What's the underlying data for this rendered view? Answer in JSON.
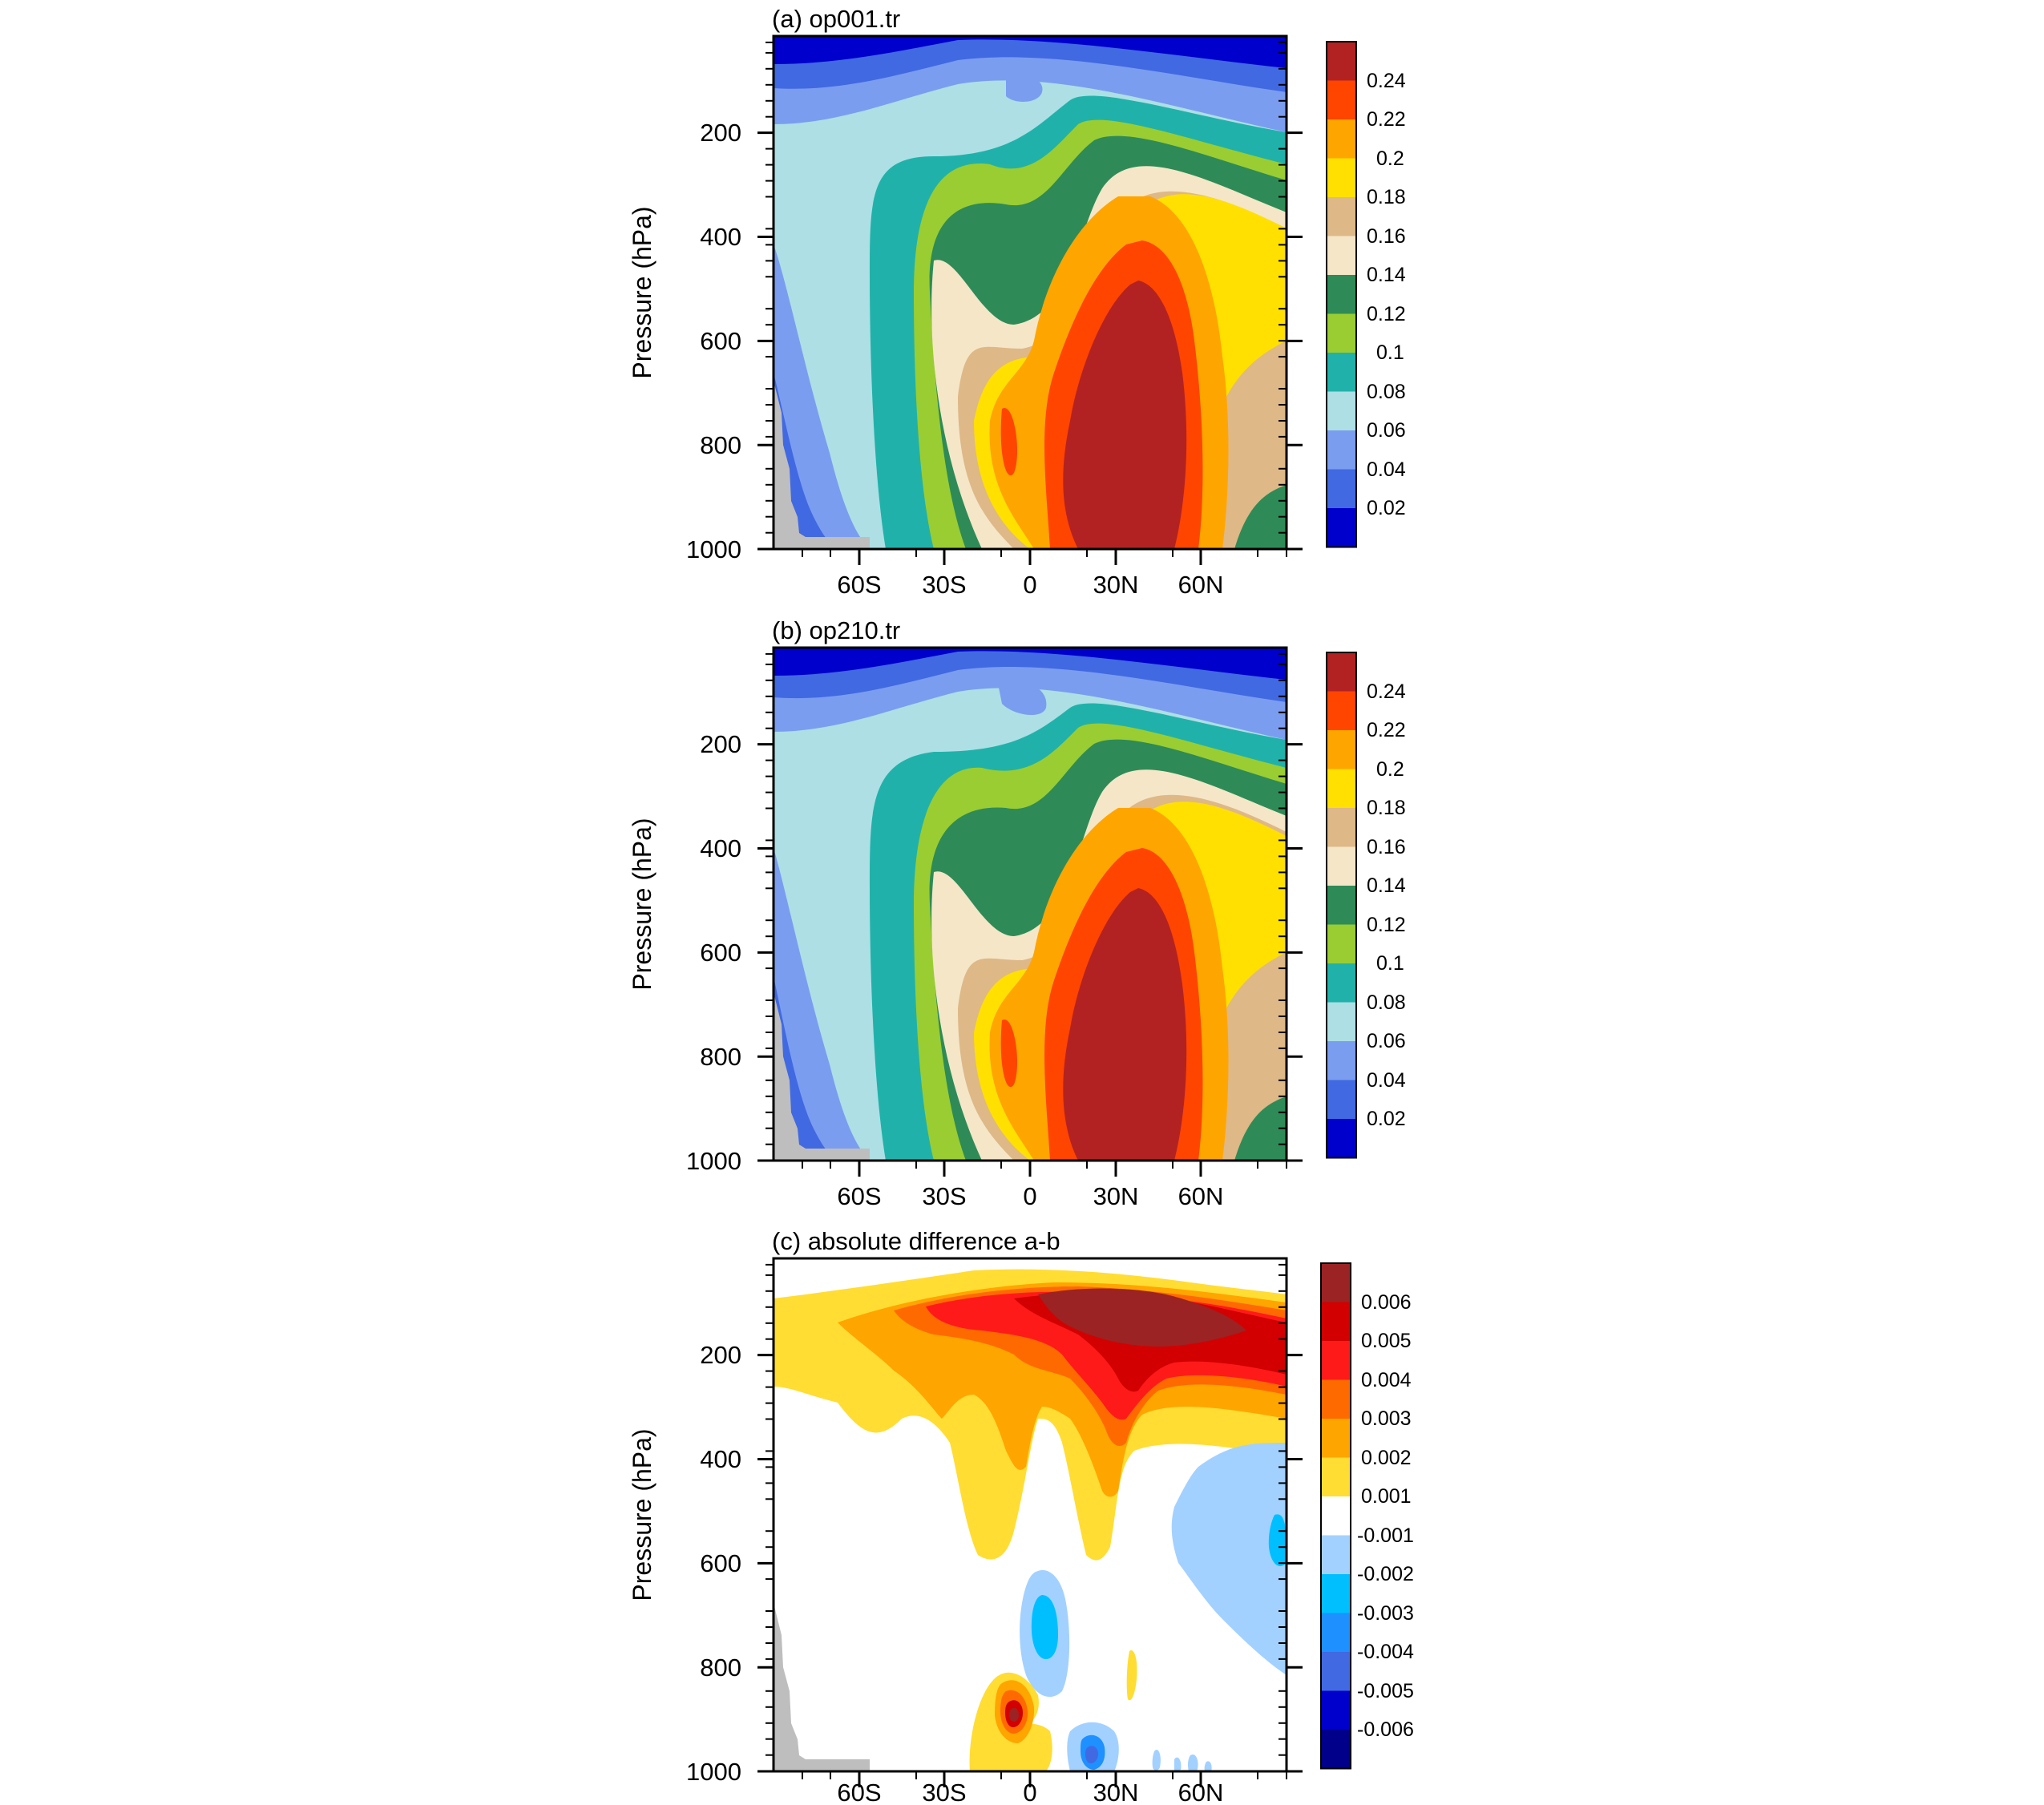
{
  "chart_data": [
    {
      "type": "contour",
      "title": "(a) op001.tr",
      "ylabel": "Pressure (hPa)",
      "xlabel": "",
      "ylim": [
        1000,
        30
      ],
      "y_reversed": true,
      "xlim": [
        -90,
        90
      ],
      "yticks": [
        200,
        400,
        600,
        800,
        1000
      ],
      "xtick_values": [
        -60,
        -30,
        0,
        30,
        60
      ],
      "xtick_labels": [
        "60S",
        "30S",
        "0",
        "30N",
        "60N"
      ],
      "colorbar_levels": [
        "0.02",
        "0.04",
        "0.06",
        "0.08",
        "0.1",
        "0.12",
        "0.14",
        "0.16",
        "0.18",
        "0.2",
        "0.22",
        "0.24"
      ],
      "colorbar_colors": [
        "#0000cd",
        "#4169e1",
        "#7b9df0",
        "#aedfe5",
        "#20b2aa",
        "#9acd32",
        "#2e8b57",
        "#f5e6c8",
        "#deb887",
        "#ffe000",
        "#ffa500",
        "#ff4500",
        "#b22222"
      ],
      "features": {
        "maximum": {
          "value": "> 0.24",
          "lat": 30,
          "p_top": 500,
          "p_bottom": 1000
        },
        "secondary_maximum": {
          "value": "0.22-0.24",
          "lat": -5,
          "p": 800
        },
        "upper_minimum": {
          "value": "< 0.02",
          "p": 50
        }
      }
    },
    {
      "type": "contour",
      "title": "(b) op210.tr",
      "ylabel": "Pressure (hPa)",
      "xlabel": "",
      "ylim": [
        1000,
        30
      ],
      "y_reversed": true,
      "xlim": [
        -90,
        90
      ],
      "yticks": [
        200,
        400,
        600,
        800,
        1000
      ],
      "xtick_values": [
        -60,
        -30,
        0,
        30,
        60
      ],
      "xtick_labels": [
        "60S",
        "30S",
        "0",
        "30N",
        "60N"
      ],
      "colorbar_levels": [
        "0.02",
        "0.04",
        "0.06",
        "0.08",
        "0.1",
        "0.12",
        "0.14",
        "0.16",
        "0.18",
        "0.2",
        "0.22",
        "0.24"
      ],
      "colorbar_colors": [
        "#0000cd",
        "#4169e1",
        "#7b9df0",
        "#aedfe5",
        "#20b2aa",
        "#9acd32",
        "#2e8b57",
        "#f5e6c8",
        "#deb887",
        "#ffe000",
        "#ffa500",
        "#ff4500",
        "#b22222"
      ],
      "features": {
        "maximum": {
          "value": "> 0.24",
          "lat": 30,
          "p_top": 500,
          "p_bottom": 1000
        },
        "secondary_maximum": {
          "value": "0.22-0.24",
          "lat": -5,
          "p": 800
        },
        "upper_minimum": {
          "value": "< 0.02",
          "p": 50
        }
      }
    },
    {
      "type": "contour",
      "title": "(c) absolute difference a-b",
      "ylabel": "Pressure (hPa)",
      "xlabel": "",
      "ylim": [
        1000,
        30
      ],
      "y_reversed": true,
      "xlim": [
        -90,
        90
      ],
      "yticks": [
        200,
        400,
        600,
        800,
        1000
      ],
      "xtick_values": [
        -60,
        -30,
        0,
        30,
        60
      ],
      "xtick_labels": [
        "60S",
        "30S",
        "0",
        "30N",
        "60N"
      ],
      "colorbar_levels": [
        "0.006",
        "0.005",
        "0.004",
        "0.003",
        "0.002",
        "0.001",
        "-0.001",
        "-0.002",
        "-0.003",
        "-0.004",
        "-0.005",
        "-0.006"
      ],
      "colorbar_colors": [
        "#9b2323",
        "#d20000",
        "#ff1a1a",
        "#ff6a00",
        "#ffa500",
        "#ffdd33",
        "#ffffff",
        "#a3d1ff",
        "#00bfff",
        "#1e90ff",
        "#4169e1",
        "#0000cd",
        "#00008b"
      ],
      "features": {
        "positive_maximum": {
          "value": "> 0.006",
          "lat": 30,
          "p": 150
        },
        "positive_lower": {
          "value": "0.005-0.006",
          "lat": -2,
          "p": 870
        },
        "negative_minimum": {
          "value": "-0.003 to -0.004",
          "lat": 22,
          "p": 960
        }
      }
    }
  ],
  "colors": {
    "terrain": "#bebebe",
    "axes": "#000000",
    "background": "#ffffff"
  }
}
